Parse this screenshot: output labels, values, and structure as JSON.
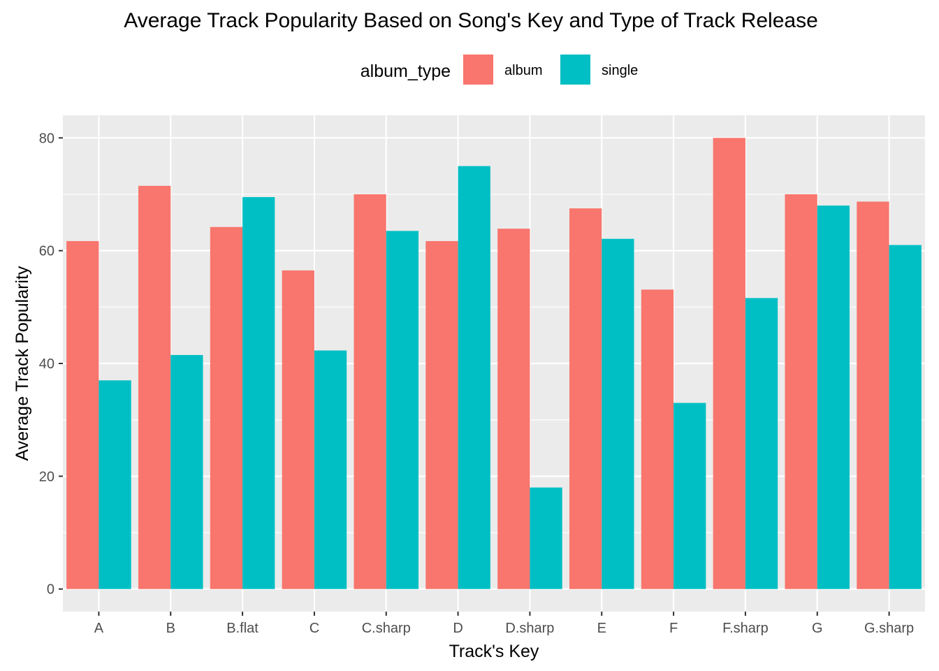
{
  "chart_data": {
    "type": "bar",
    "title": "Average Track Popularity Based on Song's Key and Type of Track Release",
    "xlabel": "Track's Key",
    "ylabel": "Average Track Popularity",
    "categories": [
      "A",
      "B",
      "B.flat",
      "C",
      "C.sharp",
      "D",
      "D.sharp",
      "E",
      "F",
      "F.sharp",
      "G",
      "G.sharp"
    ],
    "series": [
      {
        "name": "album",
        "color": "#F8766D",
        "values": [
          61.7,
          71.5,
          64.2,
          56.5,
          70.0,
          61.7,
          63.9,
          67.5,
          53.1,
          80.0,
          70.0,
          68.7
        ]
      },
      {
        "name": "single",
        "color": "#00BFC4",
        "values": [
          37.0,
          41.5,
          69.5,
          42.3,
          63.5,
          75.0,
          18.0,
          62.1,
          33.0,
          51.6,
          68.0,
          61.0
        ]
      }
    ],
    "ylim": [
      -4.0,
      84.0
    ],
    "yticks": [
      0,
      20,
      40,
      60,
      80
    ],
    "grid": true,
    "legend": {
      "title": "album_type",
      "position": "top"
    },
    "panel_background": "#EBEBEB",
    "grid_color": "#FFFFFF"
  }
}
